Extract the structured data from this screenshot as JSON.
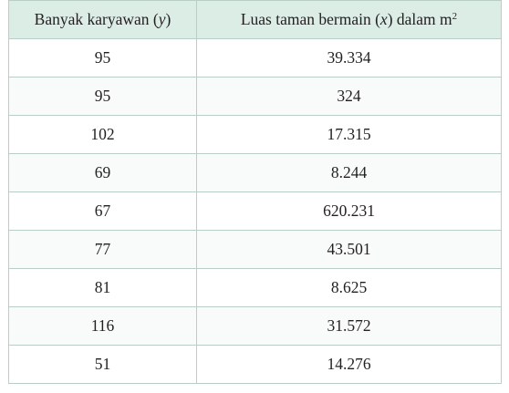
{
  "table": {
    "headers": {
      "col1": {
        "text": "Banyak karyawan (",
        "variable": "y",
        "close": ")"
      },
      "col2": {
        "text": "Luas taman bermain (",
        "variable": "x",
        "rest": ") dalam m",
        "exponent": "2"
      }
    },
    "rows": [
      {
        "y": "95",
        "x": "39.334"
      },
      {
        "y": "95",
        "x": "324"
      },
      {
        "y": "102",
        "x": "17.315"
      },
      {
        "y": "69",
        "x": "8.244"
      },
      {
        "y": "67",
        "x": "620.231"
      },
      {
        "y": "77",
        "x": "43.501"
      },
      {
        "y": "81",
        "x": "8.625"
      },
      {
        "y": "116",
        "x": "31.572"
      },
      {
        "y": "51",
        "x": "14.276"
      }
    ],
    "colors": {
      "header_bg": "#dcede6",
      "border": "#b8cec6",
      "text": "#231f20"
    }
  }
}
